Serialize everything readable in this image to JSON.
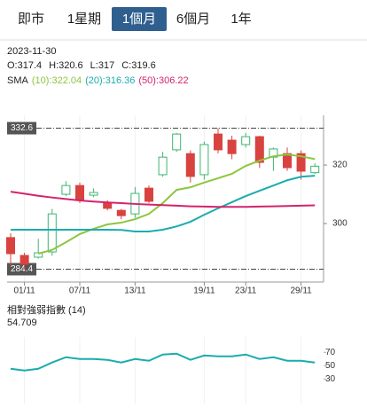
{
  "tabs": [
    "即市",
    "1星期",
    "1個月",
    "6個月",
    "1年"
  ],
  "selected_tab": 2,
  "info": {
    "date": "2023-11-30",
    "ohlc": [
      "O:317.4",
      "H:320.6",
      "L:317",
      "C:319.6"
    ]
  },
  "chart_data": [
    {
      "type": "candlestick",
      "categories": [
        null,
        "01/11",
        null,
        null,
        null,
        "07/11",
        null,
        null,
        null,
        "13/11",
        null,
        null,
        null,
        null,
        "19/11",
        null,
        null,
        "23/11",
        null,
        null,
        null,
        "29/11",
        null
      ],
      "open": [
        295.2,
        289.1,
        288.5,
        290.3,
        310,
        313,
        309.7,
        307,
        304.5,
        303.3,
        312.1,
        316.7,
        325.2,
        323.9,
        316.7,
        330.6,
        328.5,
        327,
        329.7,
        322.7,
        323.9,
        323.9,
        317.4
      ],
      "high": [
        296.7,
        290,
        294.8,
        305,
        314.5,
        314,
        312,
        308,
        305,
        312.5,
        313,
        324.5,
        331,
        325,
        328,
        332.6,
        330,
        331,
        330,
        326,
        326,
        325,
        320.6
      ],
      "low": [
        285.2,
        284.4,
        288,
        289,
        309.4,
        307,
        309,
        304.5,
        301.5,
        302,
        307,
        316,
        324.5,
        314,
        315,
        324,
        322,
        326,
        319,
        318,
        318,
        315,
        317
      ],
      "close": [
        289.7,
        286.1,
        290,
        303.3,
        313,
        308.2,
        310.6,
        305.2,
        302.7,
        310.3,
        307.6,
        322.7,
        330.6,
        316.1,
        327,
        325.2,
        323.9,
        329.7,
        320.9,
        325.5,
        319.1,
        317.9,
        319.6
      ],
      "up_color": "#3db56f",
      "down_color": "#d8433f",
      "legend_title": "SMA",
      "series": [
        {
          "name": "(10):322.04",
          "color": "#8cc63e",
          "values": [
            null,
            null,
            289.7,
            291,
            293.6,
            296.4,
            298.2,
            299.7,
            300.3,
            301.5,
            303.3,
            307,
            311.5,
            312.4,
            314,
            315.5,
            317,
            319.7,
            321.5,
            323,
            323.6,
            323,
            322.04
          ]
        },
        {
          "name": "(20):316.36",
          "color": "#1aacae",
          "values": [
            297.9,
            297.9,
            297.9,
            297.9,
            297.9,
            297.9,
            297.9,
            297.9,
            297.8,
            297.3,
            297.3,
            297.9,
            299,
            300.6,
            303,
            305.2,
            307.3,
            309.4,
            311.2,
            313,
            314.8,
            316,
            316.36
          ]
        },
        {
          "name": "(50):306.22",
          "color": "#d4236d",
          "values": [
            310.9,
            310.2,
            309.5,
            308.9,
            308.4,
            307.9,
            307.5,
            307.2,
            307,
            306.7,
            306.5,
            306.3,
            306.1,
            305.9,
            305.8,
            305.7,
            305.7,
            305.7,
            305.8,
            305.9,
            306,
            306.1,
            306.22
          ]
        }
      ],
      "ylim": [
        280,
        337
      ],
      "yticks": [
        300,
        320
      ],
      "reference_lines": [
        332.6,
        284.4
      ]
    },
    {
      "type": "line",
      "title": "相對強弱指數 (14)",
      "series": [
        {
          "color": "#1aacae",
          "values": [
            45.3,
            42.7,
            45.3,
            54.7,
            62.7,
            60,
            60,
            58.7,
            54.7,
            60,
            57.3,
            66.7,
            68,
            58.7,
            65.3,
            64,
            64,
            66.7,
            60,
            62.7,
            57.3,
            57.3,
            54.709
          ]
        }
      ],
      "ylim": [
        -7,
        93
      ],
      "yticks": [
        30,
        50,
        70
      ]
    }
  ]
}
